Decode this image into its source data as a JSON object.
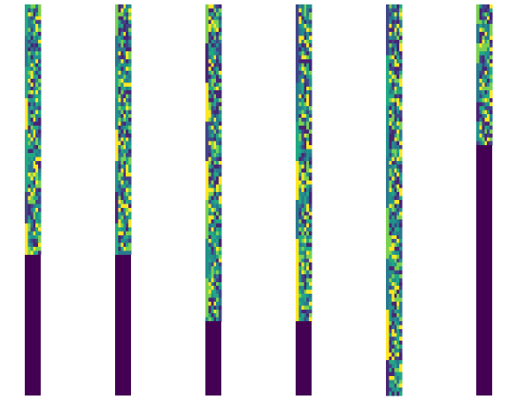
{
  "figure": {
    "panel_count": 6,
    "background": "#ffffff",
    "colormap": "viridis",
    "colors": {
      "padding": "#440154",
      "dark": "#482475",
      "indigo": "#414487",
      "blue": "#2a788e",
      "teal": "#21918c",
      "green": "#22a884",
      "lime": "#7ad151",
      "yellow": "#fde725"
    }
  },
  "panels": [
    {
      "sequence_length": 64,
      "padding_length": 36
    },
    {
      "sequence_length": 64,
      "padding_length": 36
    },
    {
      "sequence_length": 81,
      "padding_length": 19
    },
    {
      "sequence_length": 81,
      "padding_length": 19
    },
    {
      "sequence_length": 100,
      "padding_length": 0
    },
    {
      "sequence_length": 36,
      "padding_length": 64
    }
  ]
}
